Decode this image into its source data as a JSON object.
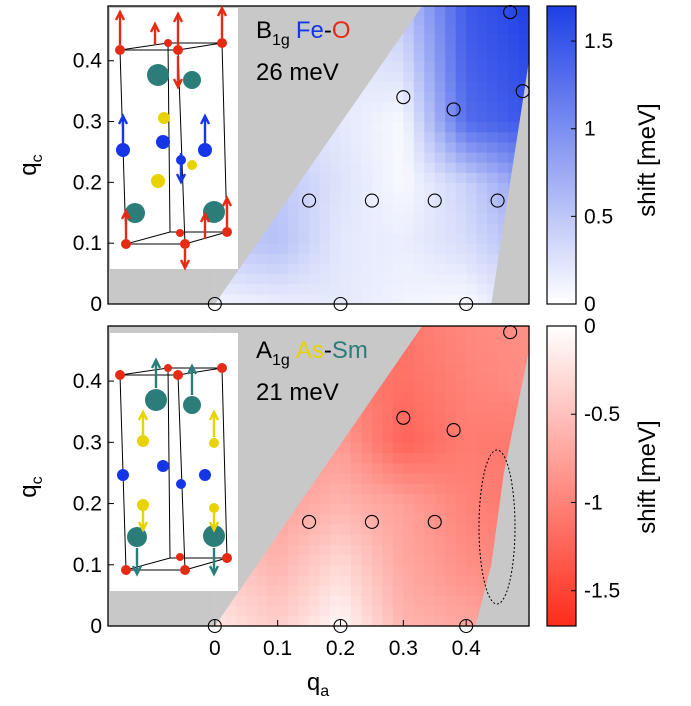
{
  "colors": {
    "background_gray": "#c8c8c8",
    "blue_max": "#1f3fe6",
    "red_max": "#ff2b1a",
    "fe": "#1436e6",
    "o": "#e62a14",
    "as": "#e8d200",
    "sm": "#2a7d78"
  },
  "chart_data": [
    {
      "type": "heatmap",
      "panel": "top",
      "annotation": {
        "mode_main": "B",
        "mode_sub": "1g",
        "atom1": "Fe",
        "dash": "-",
        "atom2": "O",
        "energy": "26 meV"
      },
      "xlim": [
        -0.17,
        0.5
      ],
      "ylim": [
        0,
        0.49
      ],
      "yticks": [
        "0",
        "0.1",
        "0.2",
        "0.3",
        "0.4"
      ],
      "ylabel_main": "q",
      "ylabel_sub": "c",
      "colorbar": {
        "label": "shift [meV]",
        "range": [
          0,
          1.7
        ],
        "ticks": [
          "0",
          "0.5",
          "1",
          "1.5"
        ]
      },
      "measured_points": [
        [
          0,
          0
        ],
        [
          0.2,
          0
        ],
        [
          0.4,
          0
        ],
        [
          0.15,
          0.17
        ],
        [
          0.25,
          0.17
        ],
        [
          0.35,
          0.17
        ],
        [
          0.45,
          0.17
        ],
        [
          0.3,
          0.34
        ],
        [
          0.38,
          0.32
        ],
        [
          0.47,
          0.48
        ],
        [
          0.49,
          0.35
        ]
      ],
      "grid_x": [
        0,
        0.1,
        0.2,
        0.3,
        0.4,
        0.5
      ],
      "grid_y": [
        0,
        0.1,
        0.2,
        0.3,
        0.4,
        0.49
      ],
      "values": [
        [
          0.1,
          0.15,
          0.2,
          0.1,
          0.05,
          0.3
        ],
        [
          0.45,
          0.55,
          0.2,
          0.15,
          0.3,
          0.6
        ],
        [
          0.4,
          0.5,
          0.25,
          0.05,
          0.4,
          0.9
        ],
        [
          0.3,
          0.25,
          0.2,
          0.05,
          1.3,
          1.5
        ],
        [
          0.3,
          0.25,
          0.2,
          0.3,
          1.4,
          1.6
        ],
        [
          0.3,
          0.3,
          0.3,
          0.5,
          1.45,
          1.7
        ]
      ]
    },
    {
      "type": "heatmap",
      "panel": "bottom",
      "annotation": {
        "mode_main": "A",
        "mode_sub": "1g",
        "atom1": "As",
        "dash": "-",
        "atom2": "Sm",
        "energy": "21 meV"
      },
      "xlim": [
        -0.17,
        0.5
      ],
      "ylim": [
        0,
        0.49
      ],
      "xticks": [
        "0",
        "0.1",
        "0.2",
        "0.3",
        "0.4"
      ],
      "yticks": [
        "0",
        "0.1",
        "0.2",
        "0.3",
        "0.4"
      ],
      "xlabel_main": "q",
      "xlabel_sub": "a",
      "ylabel_main": "q",
      "ylabel_sub": "c",
      "colorbar": {
        "label": "shift [meV]",
        "range": [
          -1.7,
          0
        ],
        "ticks": [
          "0",
          "-0.5",
          "-1",
          "-1.5"
        ]
      },
      "measured_points": [
        [
          0,
          0
        ],
        [
          0.2,
          0
        ],
        [
          0.4,
          0
        ],
        [
          0.15,
          0.17
        ],
        [
          0.25,
          0.17
        ],
        [
          0.35,
          0.17
        ],
        [
          0.3,
          0.34
        ],
        [
          0.38,
          0.32
        ],
        [
          0.47,
          0.48
        ]
      ],
      "highlight_ellipse": {
        "center": [
          0.445,
          0.2
        ],
        "radii": [
          0.02,
          0.1
        ]
      },
      "grid_x": [
        0,
        0.1,
        0.2,
        0.3,
        0.4,
        0.5
      ],
      "grid_y": [
        0,
        0.1,
        0.2,
        0.3,
        0.4,
        0.49
      ],
      "values": [
        [
          -0.2,
          -0.4,
          -0.05,
          -0.6,
          -0.7,
          -0.8
        ],
        [
          -0.4,
          -0.6,
          -0.3,
          -0.7,
          -0.9,
          -1.0
        ],
        [
          -0.5,
          -0.75,
          -0.6,
          -0.75,
          -1.0,
          -1.1
        ],
        [
          -0.8,
          -0.9,
          -0.8,
          -1.25,
          -1.05,
          -1.1
        ],
        [
          -1.0,
          -1.0,
          -1.0,
          -1.15,
          -1.0,
          -0.9
        ],
        [
          -1.0,
          -1.0,
          -1.0,
          -1.1,
          -0.95,
          -0.9
        ]
      ]
    }
  ]
}
